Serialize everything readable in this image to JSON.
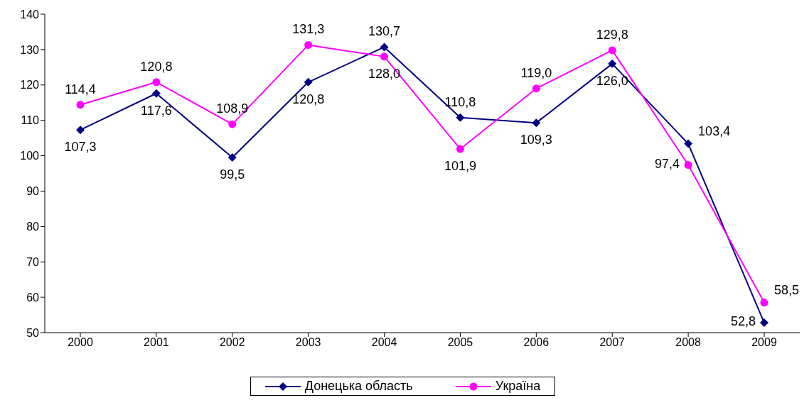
{
  "chart_data": {
    "type": "line",
    "categories": [
      "2000",
      "2001",
      "2002",
      "2003",
      "2004",
      "2005",
      "2006",
      "2007",
      "2008",
      "2009"
    ],
    "series": [
      {
        "name": "Донецька область",
        "color": "#000080",
        "marker": "diamond",
        "values": [
          107.3,
          117.6,
          99.5,
          120.8,
          130.7,
          110.8,
          109.3,
          126.0,
          103.4,
          52.8
        ],
        "value_labels": [
          "107,3",
          "117,6",
          "99,5",
          "120,8",
          "130,7",
          "110,8",
          "109,3",
          "126,0",
          "103,4",
          "52,8"
        ]
      },
      {
        "name": "Україна",
        "color": "#ff00ff",
        "marker": "circle",
        "values": [
          114.4,
          120.8,
          108.9,
          131.3,
          128.0,
          101.9,
          119.0,
          129.8,
          97.4,
          58.5
        ],
        "value_labels": [
          "114,4",
          "120,8",
          "108,9",
          "131,3",
          "128,0",
          "101,9",
          "119,0",
          "129,8",
          "97,4",
          "58,5"
        ]
      }
    ],
    "ylim": [
      50,
      140
    ],
    "yticks": [
      50,
      60,
      70,
      80,
      90,
      100,
      110,
      120,
      130,
      140
    ],
    "grid": false,
    "legend": "bottom"
  }
}
